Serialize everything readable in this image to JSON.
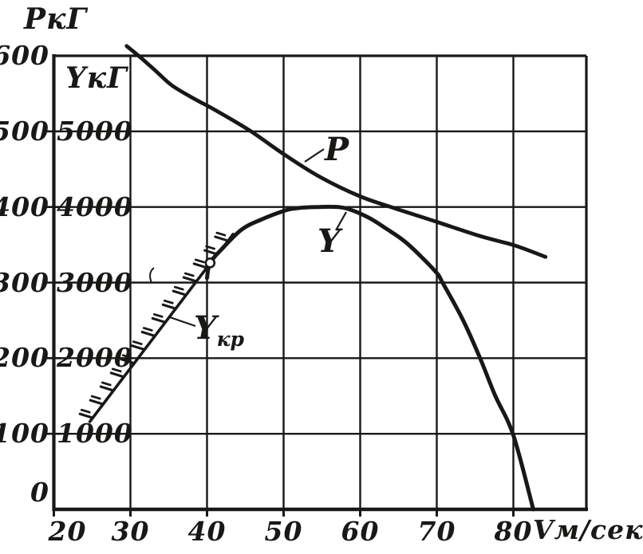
{
  "figure": {
    "background": "#ffffff",
    "ink_color": "#181816"
  },
  "labels": {
    "p_axis_title": "РкГ",
    "y_axis_title": "YкГ",
    "x_axis_title": "Vм/сек",
    "curve_p_label": "P",
    "curve_y_label": "Y",
    "curve_ykr_label_main": "Y",
    "curve_ykr_label_sub": "кр"
  },
  "chart_data": {
    "type": "line",
    "grid": true,
    "legend": "inline-labels-with-leader-lines",
    "x_axis": {
      "title": "Vм/сек",
      "ticks": [
        20,
        30,
        40,
        50,
        60,
        70,
        80
      ],
      "range_shown": [
        20,
        90
      ]
    },
    "left_axis": {
      "title": "РкГ",
      "ticks": [
        600,
        500,
        400,
        300,
        200,
        100,
        0
      ],
      "range": [
        0,
        600
      ]
    },
    "inner_axis": {
      "title": "YкГ",
      "ticks": [
        5000,
        4000,
        3000,
        2000,
        1000
      ],
      "range": [
        0,
        6000
      ],
      "alignment": "same gridlines as left axis, values ×10"
    },
    "series": [
      {
        "name": "P",
        "axis": "left",
        "style": "solid-curve",
        "points_V_kG": [
          [
            29.5,
            613
          ],
          [
            31.3,
            598
          ],
          [
            33.3,
            580
          ],
          [
            35.4,
            561
          ],
          [
            38.0,
            545
          ],
          [
            41.1,
            528
          ],
          [
            45.6,
            501
          ],
          [
            50.0,
            470
          ],
          [
            54.7,
            440
          ],
          [
            60.0,
            414
          ],
          [
            64.6,
            398
          ],
          [
            69.8,
            381
          ],
          [
            75.5,
            362
          ],
          [
            80.2,
            349
          ],
          [
            84.2,
            334
          ]
        ]
      },
      {
        "name": "Y",
        "axis": "inner",
        "style": "solid-curve",
        "marker": {
          "shape": "open-circle",
          "V": 40.4,
          "Y": 3260
        },
        "points_V_kG": [
          [
            40.0,
            3060
          ],
          [
            40.4,
            3260
          ],
          [
            41.9,
            3440
          ],
          [
            44.5,
            3700
          ],
          [
            47.0,
            3830
          ],
          [
            50.1,
            3950
          ],
          [
            51.8,
            3985
          ],
          [
            54.5,
            4000
          ],
          [
            57.8,
            3990
          ],
          [
            60.9,
            3870
          ],
          [
            63.3,
            3720
          ],
          [
            66.1,
            3520
          ],
          [
            69.8,
            3150
          ],
          [
            70.8,
            2990
          ],
          [
            73.4,
            2510
          ],
          [
            75.7,
            1990
          ],
          [
            77.6,
            1510
          ],
          [
            80.0,
            980
          ],
          [
            82.6,
            0
          ]
        ]
      },
      {
        "name": "Yкр",
        "axis": "inner",
        "style": "hatched-boundary-line",
        "points_V_kG": [
          [
            24.7,
            1160
          ],
          [
            40.3,
            3240
          ],
          [
            41.9,
            3440
          ],
          [
            43.4,
            3640
          ]
        ]
      }
    ]
  }
}
